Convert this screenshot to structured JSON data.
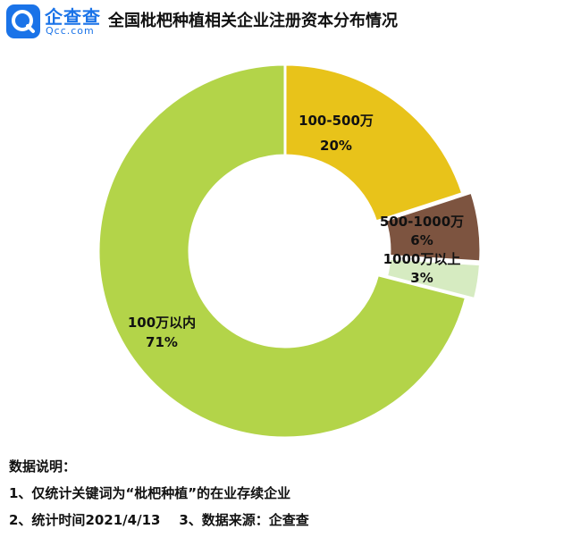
{
  "header": {
    "brand_cn": "企查查",
    "brand_en": "Qcc.com"
  },
  "chart_data": {
    "type": "pie",
    "style": "donut",
    "title": "全国枇杷种植相关企业注册资本分布情况",
    "slices": [
      {
        "label": "100-500万",
        "value": 20,
        "value_label": "20%",
        "color": "#e8c31a"
      },
      {
        "label": "500-1000万",
        "value": 6,
        "value_label": "6%",
        "color": "#7d5440"
      },
      {
        "label": "1000万以上",
        "value": 3,
        "value_label": "3%",
        "color": "#d6ebc1"
      },
      {
        "label": "100万以内",
        "value": 71,
        "value_label": "71%",
        "color": "#b3d449"
      }
    ],
    "legend": "none"
  },
  "notes": {
    "heading": "数据说明：",
    "line1": "1、仅统计关键词为“枇杷种植”的在业存续企业",
    "line2": "2、统计时间2021/4/13    3、数据来源：企查查"
  }
}
